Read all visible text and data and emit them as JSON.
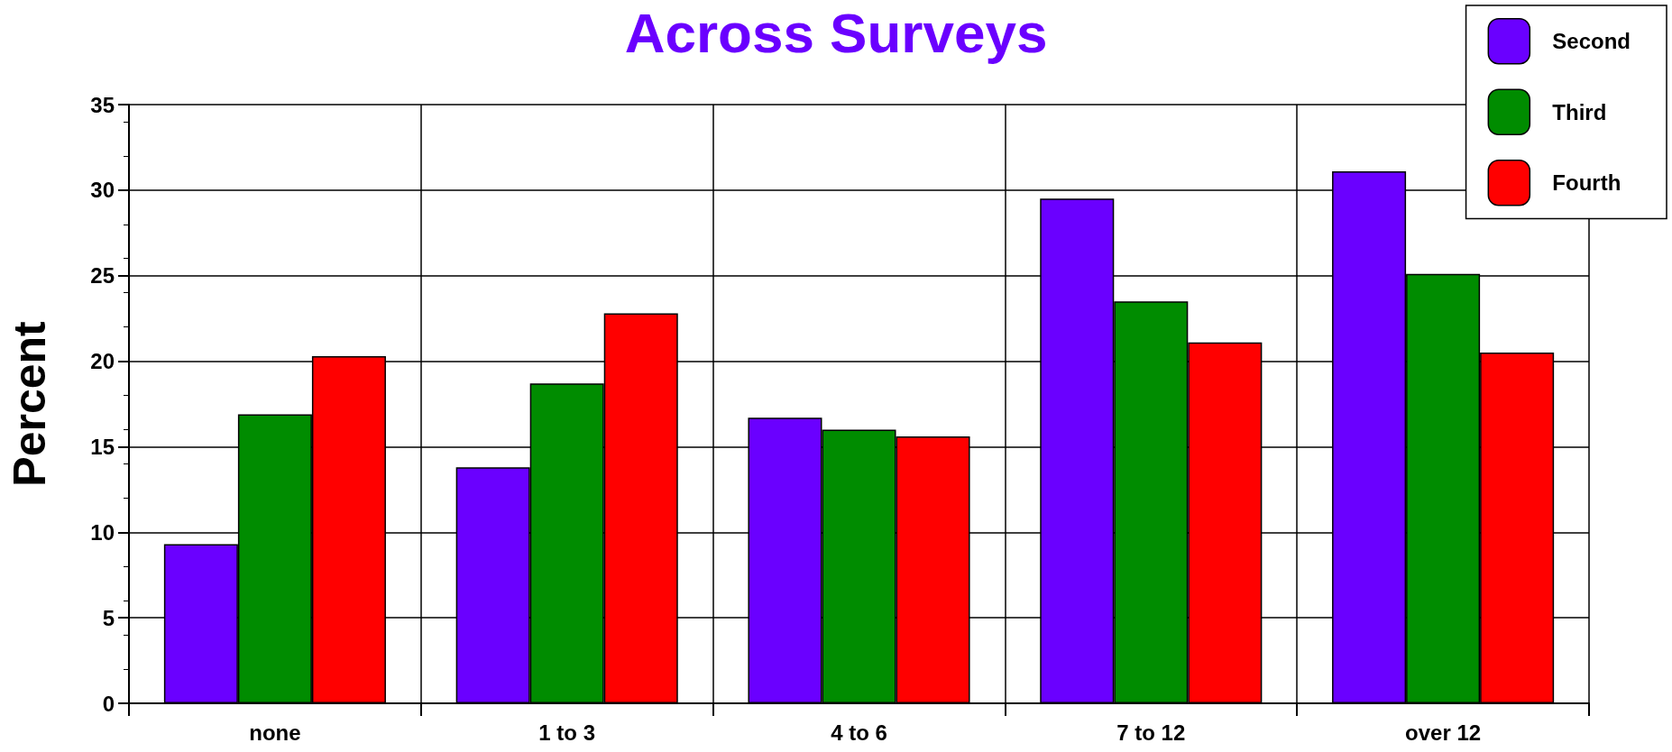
{
  "chart_data": {
    "type": "bar",
    "title": "Across Surveys",
    "ylabel": "Percent",
    "categories": [
      "none",
      "1 to 3",
      "4 to 6",
      "7 to 12",
      "over 12"
    ],
    "series": [
      {
        "name": "Second",
        "color": "#6a00ff",
        "values": [
          9.3,
          13.8,
          16.7,
          29.5,
          31.1
        ]
      },
      {
        "name": "Third",
        "color": "#008c00",
        "values": [
          16.9,
          18.7,
          16.0,
          23.5,
          25.1
        ]
      },
      {
        "name": "Fourth",
        "color": "#ff0000",
        "values": [
          20.3,
          22.8,
          15.6,
          21.1,
          20.5
        ]
      }
    ],
    "ylim": [
      0,
      35
    ],
    "yticks": [
      0,
      5,
      10,
      15,
      20,
      25,
      30,
      35
    ],
    "grid": true,
    "legend": "top right"
  }
}
